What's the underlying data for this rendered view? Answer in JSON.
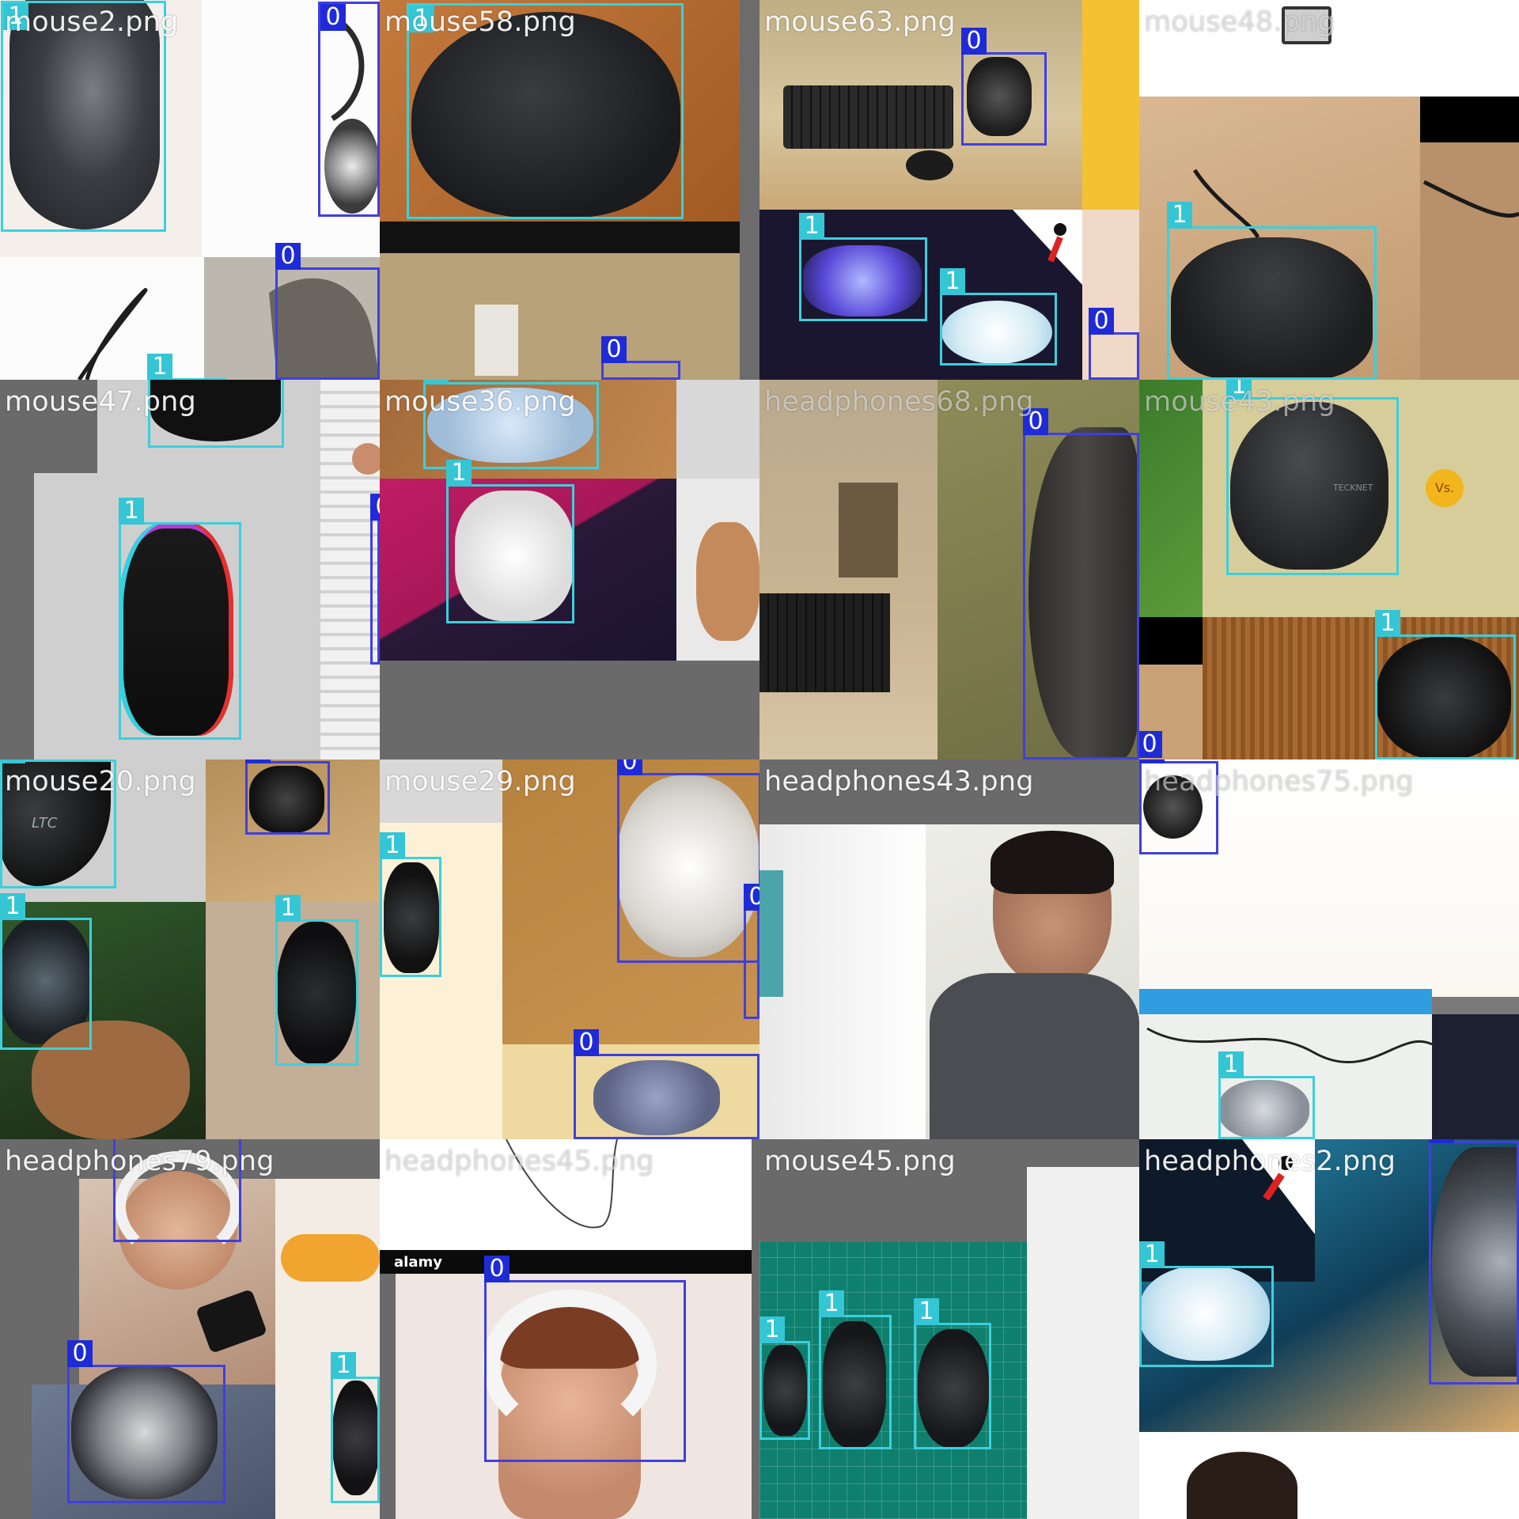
{
  "tiles": [
    {
      "filename": "mouse2.png",
      "labels": [
        "1",
        "0",
        "0",
        "1"
      ]
    },
    {
      "filename": "mouse58.png",
      "labels": [
        "1",
        "0"
      ]
    },
    {
      "filename": "mouse63.png",
      "labels": [
        "0",
        "1",
        "1",
        "0"
      ]
    },
    {
      "filename": "mouse48.png",
      "labels": [
        "1"
      ]
    },
    {
      "filename": "mouse47.png",
      "labels": [
        "1",
        "1",
        "0"
      ]
    },
    {
      "filename": "mouse36.png",
      "labels": [
        "1",
        "1"
      ]
    },
    {
      "filename": "headphones68.png",
      "labels": [
        "0"
      ]
    },
    {
      "filename": "mouse43.png",
      "labels": [
        "1",
        "1",
        "0"
      ]
    },
    {
      "filename": "mouse20.png",
      "labels": [
        "1",
        "0",
        "1",
        "1"
      ]
    },
    {
      "filename": "mouse29.png",
      "labels": [
        "0",
        "1",
        "0",
        "0"
      ]
    },
    {
      "filename": "headphones43.png",
      "labels": []
    },
    {
      "filename": "headphones75.png",
      "labels": [
        "1"
      ]
    },
    {
      "filename": "headphones79.png",
      "labels": [
        "0",
        "0",
        "1"
      ]
    },
    {
      "filename": "headphones45.png",
      "labels": [
        "0"
      ]
    },
    {
      "filename": "mouse45.png",
      "labels": [
        "1",
        "1",
        "1"
      ]
    },
    {
      "filename": "headphones2.png",
      "labels": [
        "1",
        "0"
      ]
    }
  ],
  "image_text": {
    "alamy": "alamy",
    "tecknet": "TECKNET",
    "vs": "Vs.",
    "ltc": "LTC"
  },
  "colors": {
    "class0": "#1f2bd6",
    "class1": "#35c6d6"
  }
}
